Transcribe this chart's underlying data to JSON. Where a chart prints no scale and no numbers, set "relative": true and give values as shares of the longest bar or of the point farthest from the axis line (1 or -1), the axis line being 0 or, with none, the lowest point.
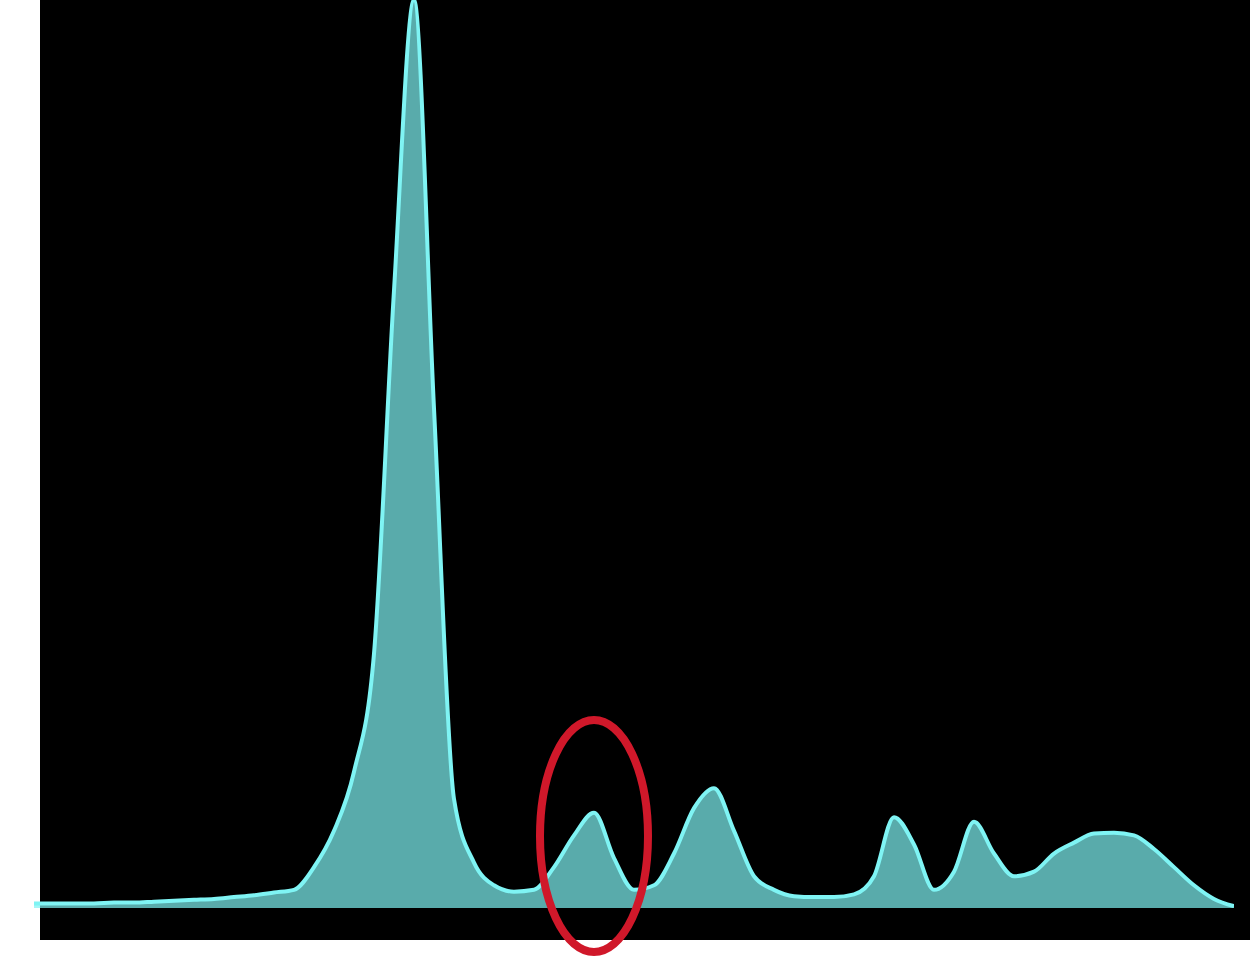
{
  "chart_data": {
    "type": "area",
    "relative": true,
    "categories": [
      null,
      null,
      null,
      null,
      null,
      null,
      null,
      null,
      null,
      null,
      null,
      null,
      null,
      null,
      null,
      null,
      null,
      null,
      null,
      null,
      null,
      null,
      null,
      null,
      null,
      null,
      null,
      null,
      null,
      null,
      null,
      null,
      null,
      null,
      null,
      null,
      null,
      null,
      null,
      null,
      null,
      null,
      null,
      null,
      null,
      null,
      null,
      null,
      null,
      null,
      null,
      null,
      null,
      null,
      null,
      null,
      null,
      null,
      null,
      null,
      null
    ],
    "series": [
      {
        "color": "#7ff4f4",
        "values": [
          0.005,
          0.005,
          0.005,
          0.005,
          0.006,
          0.006,
          0.007,
          0.008,
          0.009,
          0.01,
          0.012,
          0.014,
          0.017,
          0.02,
          0.045,
          0.085,
          0.15,
          0.28,
          0.68,
          1,
          0.55,
          0.12,
          0.05,
          0.025,
          0.018,
          0.02,
          0.045,
          0.08,
          0.105,
          0.055,
          0.02,
          0.025,
          0.06,
          0.11,
          0.132,
          0.085,
          0.035,
          0.02,
          0.013,
          0.012,
          0.012,
          0.015,
          0.035,
          0.1,
          0.07,
          0.02,
          0.04,
          0.095,
          0.06,
          0.035,
          0.04,
          0.06,
          0.072,
          0.082,
          0.083,
          0.08,
          0.065,
          0.045,
          0.025,
          0.01,
          0.002
        ]
      }
    ]
  }
}
